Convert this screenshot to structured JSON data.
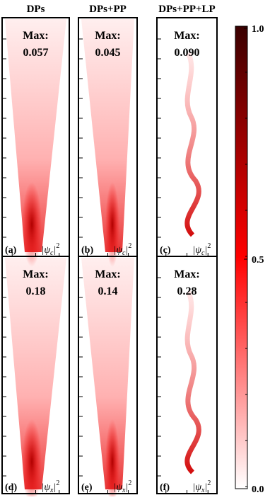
{
  "columns": [
    "DPs",
    "DPs+PP",
    "DPs+PP+LP"
  ],
  "max_label": "Max:",
  "panels": [
    {
      "label": "(a)",
      "max": "0.057",
      "symbol": "|ψ",
      "subscript": "c",
      "close": "|",
      "power": "2"
    },
    {
      "label": "(b)",
      "max": "0.045",
      "symbol": "|ψ",
      "subscript": "c",
      "close": "|",
      "power": "2"
    },
    {
      "label": "(c)",
      "max": "0.090",
      "symbol": "|ψ",
      "subscript": "c",
      "close": "|",
      "power": "2"
    },
    {
      "label": "(d)",
      "max": "0.18",
      "symbol": "|ψ",
      "subscript": "x",
      "close": "|",
      "power": "2"
    },
    {
      "label": "(e)",
      "max": "0.14",
      "symbol": "|ψ",
      "subscript": "x",
      "close": "|",
      "power": "2"
    },
    {
      "label": "(f)",
      "max": "0.28",
      "symbol": "|ψ",
      "subscript": "x",
      "close": "|",
      "power": "2"
    }
  ],
  "colorbar": {
    "ticks": [
      "1.0",
      "0.5",
      "0.0"
    ]
  }
}
